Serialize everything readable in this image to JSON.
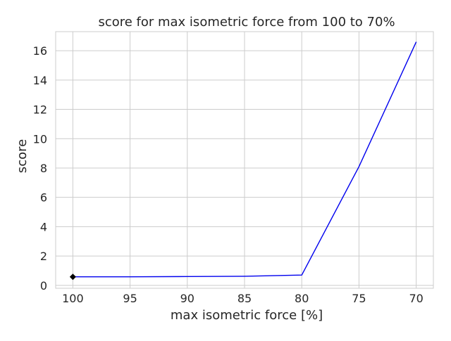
{
  "chart_data": {
    "type": "line",
    "title": "score for max isometric force from 100 to 70%",
    "xlabel": "max isometric force [%]",
    "ylabel": "score",
    "x_reversed": true,
    "xlim": [
      101.5,
      68.5
    ],
    "ylim": [
      -0.2,
      17.3
    ],
    "x_ticks": [
      100,
      95,
      90,
      85,
      80,
      75,
      70
    ],
    "y_ticks": [
      0,
      2,
      4,
      6,
      8,
      10,
      12,
      14,
      16
    ],
    "grid": true,
    "series": [
      {
        "color": "#0000ee",
        "x": [
          100,
          95,
          90,
          85,
          80,
          75,
          70
        ],
        "y": [
          0.58,
          0.58,
          0.6,
          0.62,
          0.7,
          8.1,
          16.6
        ]
      }
    ],
    "markers": [
      {
        "x": 100,
        "y": 0.58,
        "shape": "diamond",
        "color": "#000000"
      }
    ]
  }
}
